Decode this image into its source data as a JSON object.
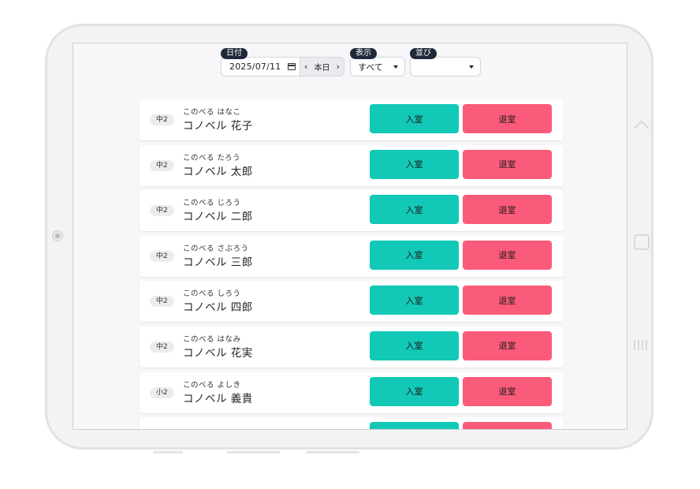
{
  "filters": {
    "date": {
      "label": "日付",
      "value": "2025/07/11",
      "today_label": "本日",
      "prev_icon": "chevron-left",
      "next_icon": "chevron-right"
    },
    "display": {
      "label": "表示",
      "value": "すべて"
    },
    "sort": {
      "label": "並び",
      "value": ""
    }
  },
  "buttons": {
    "checkin_label": "入室",
    "checkout_label": "退室"
  },
  "colors": {
    "checkin": "#12c8b6",
    "checkout": "#fb5b7a",
    "label_bg": "#1e2a3a"
  },
  "students": [
    {
      "grade": "中2",
      "kana": "このべる はなこ",
      "name": "コノベル 花子"
    },
    {
      "grade": "中2",
      "kana": "このべる たろう",
      "name": "コノベル 太郎"
    },
    {
      "grade": "中2",
      "kana": "このべる じろう",
      "name": "コノベル 二郎"
    },
    {
      "grade": "中2",
      "kana": "このべる さぶろう",
      "name": "コノベル 三郎"
    },
    {
      "grade": "中2",
      "kana": "このべる しろう",
      "name": "コノベル 四郎"
    },
    {
      "grade": "中2",
      "kana": "このべる はなみ",
      "name": "コノベル 花実"
    },
    {
      "grade": "小2",
      "kana": "このべる よしき",
      "name": "コノベル 義貴"
    }
  ]
}
